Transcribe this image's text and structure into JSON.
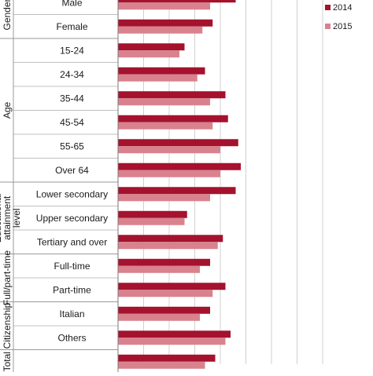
{
  "chart_data": {
    "type": "bar",
    "orientation": "horizontal",
    "grid": true,
    "legend_position": "top-right",
    "xlim": [
      0,
      8
    ],
    "groups": [
      {
        "name": "Gender",
        "categories": [
          "Male",
          "Female"
        ]
      },
      {
        "name": "Age",
        "categories": [
          "15-24",
          "24-34",
          "35-44",
          "45-54",
          "55-65",
          "Over 64"
        ]
      },
      {
        "name": "Educational attainment level",
        "categories": [
          "Lower secondary",
          "Upper secondary",
          "Tertiary and over"
        ]
      },
      {
        "name": "Full/part-time",
        "categories": [
          "Full-time",
          "Part-time"
        ]
      },
      {
        "name": "Citizenship",
        "categories": [
          "Italian",
          "Others"
        ]
      },
      {
        "name": "Total",
        "categories": [
          ""
        ]
      }
    ],
    "series": [
      {
        "name": "2014",
        "color": "#A4122E",
        "values": [
          4.6,
          3.7,
          2.6,
          3.4,
          4.2,
          4.3,
          4.7,
          4.8,
          4.6,
          2.7,
          4.1,
          3.6,
          4.2,
          3.6,
          4.4,
          3.8
        ]
      },
      {
        "name": "2015",
        "color": "#D9828E",
        "values": [
          3.6,
          3.3,
          2.4,
          3.1,
          3.6,
          3.7,
          4.0,
          4.0,
          3.6,
          2.6,
          3.9,
          3.2,
          3.7,
          3.2,
          4.2,
          3.4
        ]
      }
    ]
  }
}
